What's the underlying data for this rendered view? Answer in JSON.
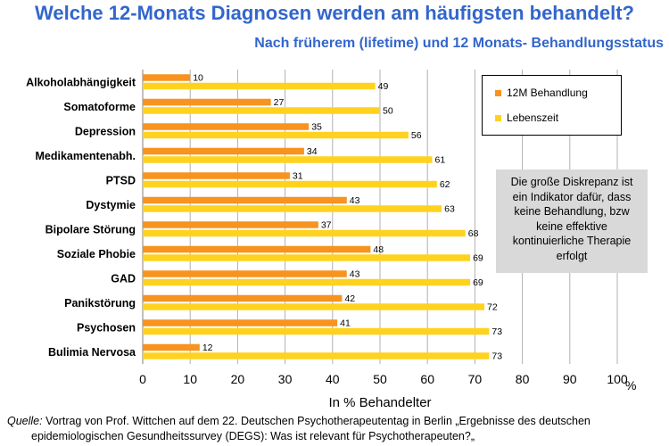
{
  "header": {
    "title": "Welche 12-Monats Diagnosen werden am häufigsten behandelt?",
    "subtitle": "Nach früherem (lifetime) und 12 Monats- Behandlungsstatus"
  },
  "chart_data": {
    "type": "bar",
    "orientation": "horizontal",
    "categories": [
      "Alkoholabhängigkeit",
      "Somatoforme",
      "Depression",
      "Medikamentenabh.",
      "PTSD",
      "Dystymie",
      "Bipolare Störung",
      "Soziale Phobie",
      "GAD",
      "Panikstörung",
      "Psychosen",
      "Bulimia Nervosa"
    ],
    "series": [
      {
        "name": "12M Behandlung",
        "color": "#f7931e",
        "values": [
          10,
          27,
          35,
          34,
          31,
          43,
          37,
          48,
          43,
          42,
          41,
          12
        ]
      },
      {
        "name": "Lebenszeit",
        "color": "#ffd21f",
        "values": [
          49,
          50,
          56,
          61,
          62,
          63,
          68,
          69,
          69,
          72,
          73,
          73
        ]
      }
    ],
    "xlabel": "In % Behandelter",
    "x_unit": "%",
    "xlim": [
      0,
      100
    ],
    "xticks": [
      0,
      10,
      20,
      30,
      40,
      50,
      60,
      70,
      80,
      90,
      100
    ],
    "grid": true,
    "legend_position": "top-right"
  },
  "note": {
    "lines": [
      "Die große Diskrepanz ist",
      "ein Indikator dafür, dass",
      "keine Behandlung, bzw",
      "keine effektive",
      "kontinuierliche Therapie",
      "erfolgt"
    ]
  },
  "source": {
    "label": "Quelle:",
    "line1": " Vortrag von Prof. Wittchen auf dem 22. Deutschen Psychotherapeutentag in Berlin „Ergebnisse des deutschen",
    "line2": "epidemiologischen Gesundheitssurvey (DEGS): Was ist relevant für Psychotherapeuten?„"
  }
}
